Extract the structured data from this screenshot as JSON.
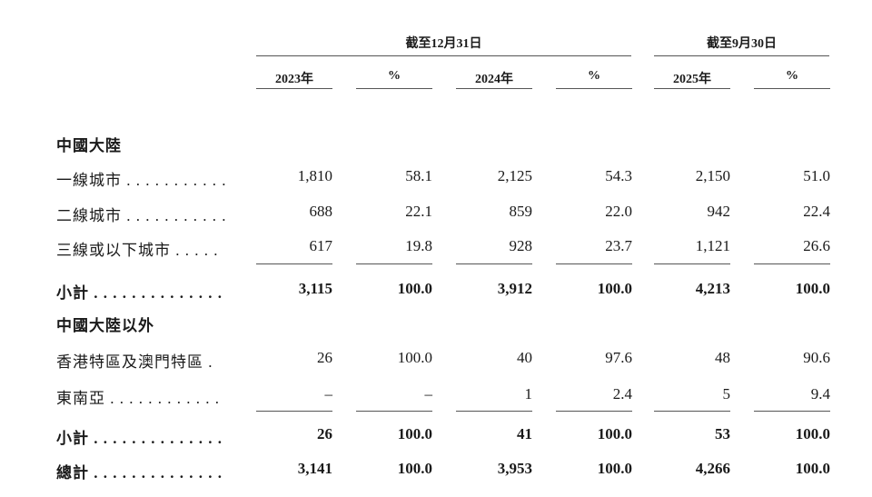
{
  "header": {
    "groups": [
      "截至12月31日",
      "截至9月30日"
    ],
    "columns": [
      "2023年",
      "%",
      "2024年",
      "%",
      "2025年",
      "%"
    ]
  },
  "rows": [
    {
      "label": "中國大陸",
      "values": []
    },
    {
      "label": "一線城市 . . . . . . . . . . .",
      "values": [
        "1,810",
        "58.1",
        "2,125",
        "54.3",
        "2,150",
        "51.0"
      ]
    },
    {
      "label": "二線城市 . . . . . . . . . . .",
      "values": [
        "688",
        "22.1",
        "859",
        "22.0",
        "942",
        "22.4"
      ]
    },
    {
      "label": "三線或以下城市 . . . . .",
      "values": [
        "617",
        "19.8",
        "928",
        "23.7",
        "1,121",
        "26.6"
      ]
    },
    {
      "label": "小計 . . . . . . . . . . . . . .",
      "values": [
        "3,115",
        "100.0",
        "3,912",
        "100.0",
        "4,213",
        "100.0"
      ]
    },
    {
      "label": "中國大陸以外",
      "values": []
    },
    {
      "label": "香港特區及澳門特區 .",
      "values": [
        "26",
        "100.0",
        "40",
        "97.6",
        "48",
        "90.6"
      ]
    },
    {
      "label": "東南亞 . . . . . . . . . . . .",
      "values": [
        "–",
        "–",
        "1",
        "2.4",
        "5",
        "9.4"
      ]
    },
    {
      "label": "小計 . . . . . . . . . . . . . .",
      "values": [
        "26",
        "100.0",
        "41",
        "100.0",
        "53",
        "100.0"
      ]
    },
    {
      "label": "總計 . . . . . . . . . . . . . .",
      "values": [
        "3,141",
        "100.0",
        "3,953",
        "100.0",
        "4,266",
        "100.0"
      ]
    }
  ]
}
